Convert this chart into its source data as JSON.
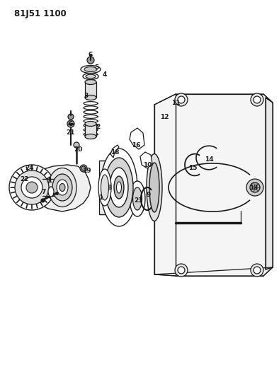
{
  "title_code": "81J51 1100",
  "bg_color": "#ffffff",
  "line_color": "#1a1a1a",
  "figsize": [
    3.94,
    5.33
  ],
  "dpi": 100
}
